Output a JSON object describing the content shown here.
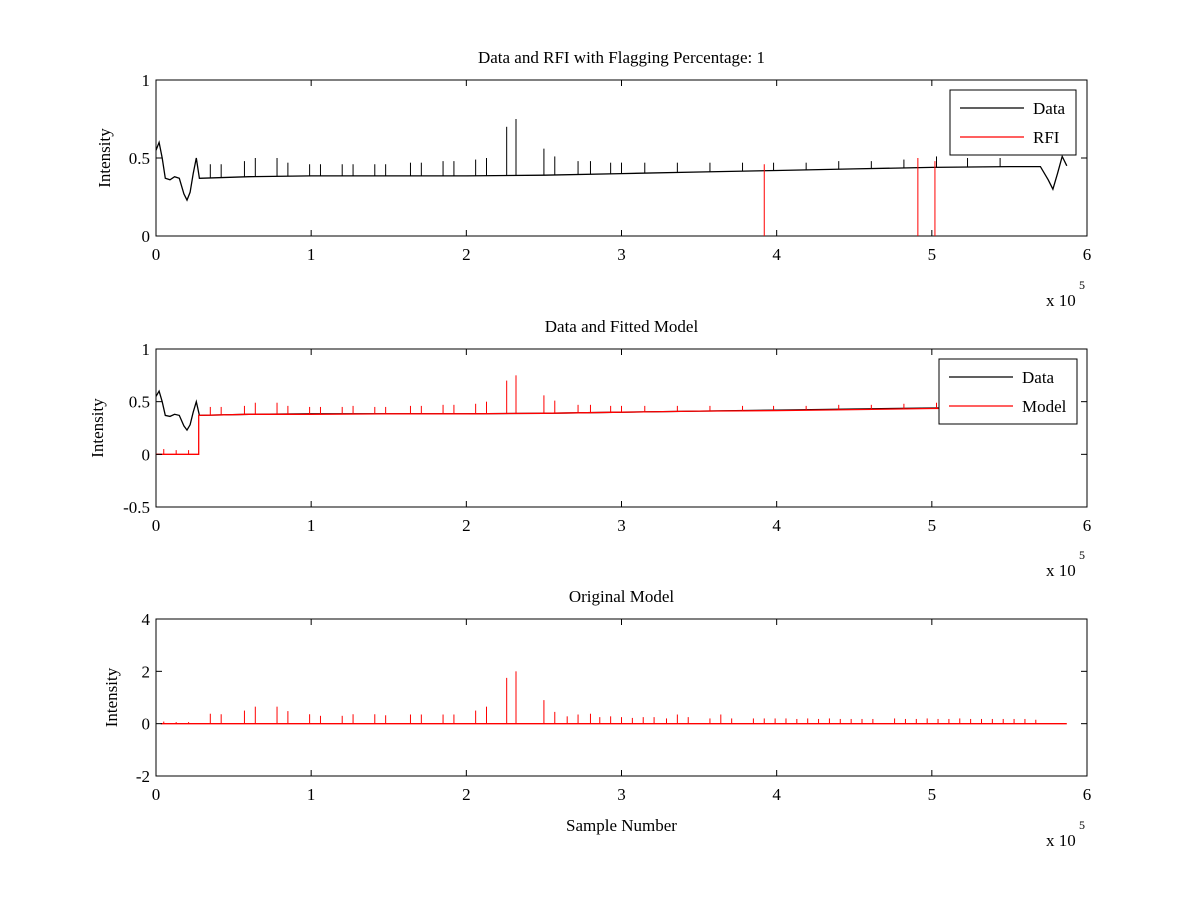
{
  "chart_data": [
    {
      "type": "line",
      "title": "Data and RFI with Flagging Percentage: 1",
      "xlabel": "",
      "ylabel": "Intensity",
      "xlim": [
        0,
        600000
      ],
      "ylim": [
        0,
        1
      ],
      "x_ticks": [
        0,
        100000,
        200000,
        300000,
        400000,
        500000,
        600000
      ],
      "x_tick_labels": [
        "0",
        "1",
        "2",
        "3",
        "4",
        "5",
        "6"
      ],
      "y_ticks": [
        0,
        0.5,
        1
      ],
      "y_tick_labels": [
        "0",
        "0.5",
        "1"
      ],
      "x_multiplier": {
        "text": "x 10",
        "exponent": "5"
      },
      "grid": false,
      "legend": "top-right",
      "series": [
        {
          "name": "Data",
          "color": "#000000",
          "values": [
            [
              0,
              0.55
            ],
            [
              2000,
              0.6
            ],
            [
              4000,
              0.5
            ],
            [
              6000,
              0.37
            ],
            [
              9000,
              0.36
            ],
            [
              12000,
              0.38
            ],
            [
              15000,
              0.37
            ],
            [
              18000,
              0.27
            ],
            [
              20000,
              0.23
            ],
            [
              22000,
              0.28
            ],
            [
              24000,
              0.4
            ],
            [
              26000,
              0.5
            ],
            [
              28000,
              0.37
            ],
            [
              60000,
              0.38
            ],
            [
              100000,
              0.385
            ],
            [
              150000,
              0.385
            ],
            [
              200000,
              0.385
            ],
            [
              250000,
              0.39
            ],
            [
              300000,
              0.4
            ],
            [
              350000,
              0.41
            ],
            [
              400000,
              0.42
            ],
            [
              450000,
              0.43
            ],
            [
              500000,
              0.44
            ],
            [
              550000,
              0.445
            ],
            [
              570000,
              0.445
            ],
            [
              575000,
              0.36
            ],
            [
              578000,
              0.3
            ],
            [
              581000,
              0.4
            ],
            [
              584000,
              0.51
            ],
            [
              587000,
              0.45
            ]
          ],
          "spikes": [
            [
              35000,
              0.46
            ],
            [
              42000,
              0.46
            ],
            [
              57000,
              0.48
            ],
            [
              64000,
              0.5
            ],
            [
              78000,
              0.5
            ],
            [
              85000,
              0.47
            ],
            [
              99000,
              0.46
            ],
            [
              106000,
              0.46
            ],
            [
              120000,
              0.46
            ],
            [
              127000,
              0.46
            ],
            [
              141000,
              0.46
            ],
            [
              148000,
              0.46
            ],
            [
              164000,
              0.47
            ],
            [
              171000,
              0.47
            ],
            [
              185000,
              0.48
            ],
            [
              192000,
              0.48
            ],
            [
              206000,
              0.49
            ],
            [
              213000,
              0.5
            ],
            [
              226000,
              0.7
            ],
            [
              232000,
              0.75
            ],
            [
              250000,
              0.56
            ],
            [
              257000,
              0.51
            ],
            [
              272000,
              0.48
            ],
            [
              280000,
              0.48
            ],
            [
              293000,
              0.47
            ],
            [
              300000,
              0.47
            ],
            [
              315000,
              0.47
            ],
            [
              336000,
              0.47
            ],
            [
              357000,
              0.47
            ],
            [
              378000,
              0.47
            ],
            [
              398000,
              0.47
            ],
            [
              419000,
              0.47
            ],
            [
              440000,
              0.48
            ],
            [
              461000,
              0.48
            ],
            [
              482000,
              0.49
            ],
            [
              503000,
              0.51
            ],
            [
              523000,
              0.5
            ],
            [
              544000,
              0.5
            ]
          ]
        },
        {
          "name": "RFI",
          "color": "#ff0000",
          "spikes": [
            [
              392000,
              0.46
            ],
            [
              491000,
              0.5
            ],
            [
              502000,
              0.48
            ]
          ]
        }
      ]
    },
    {
      "type": "line",
      "title": "Data and Fitted Model",
      "xlabel": "",
      "ylabel": "Intensity",
      "xlim": [
        0,
        600000
      ],
      "ylim": [
        -0.5,
        1
      ],
      "x_ticks": [
        0,
        100000,
        200000,
        300000,
        400000,
        500000,
        600000
      ],
      "x_tick_labels": [
        "0",
        "1",
        "2",
        "3",
        "4",
        "5",
        "6"
      ],
      "y_ticks": [
        -0.5,
        0,
        0.5,
        1
      ],
      "y_tick_labels": [
        "-0.5",
        "0",
        "0.5",
        "1"
      ],
      "x_multiplier": {
        "text": "x 10",
        "exponent": "5"
      },
      "grid": false,
      "legend": "top-right",
      "series": [
        {
          "name": "Data",
          "color": "#000000",
          "values": [
            [
              0,
              0.55
            ],
            [
              2000,
              0.6
            ],
            [
              4000,
              0.5
            ],
            [
              6000,
              0.37
            ],
            [
              9000,
              0.36
            ],
            [
              12000,
              0.38
            ],
            [
              15000,
              0.37
            ],
            [
              18000,
              0.27
            ],
            [
              20000,
              0.23
            ],
            [
              22000,
              0.28
            ],
            [
              24000,
              0.4
            ],
            [
              26000,
              0.5
            ],
            [
              28000,
              0.37
            ],
            [
              60000,
              0.38
            ],
            [
              100000,
              0.385
            ],
            [
              150000,
              0.385
            ],
            [
              200000,
              0.385
            ],
            [
              250000,
              0.39
            ],
            [
              300000,
              0.4
            ],
            [
              350000,
              0.41
            ],
            [
              400000,
              0.42
            ],
            [
              450000,
              0.43
            ],
            [
              500000,
              0.44
            ],
            [
              550000,
              0.445
            ],
            [
              570000,
              0.445
            ],
            [
              575000,
              0.36
            ],
            [
              578000,
              0.3
            ],
            [
              581000,
              0.4
            ],
            [
              584000,
              0.51
            ],
            [
              587000,
              0.45
            ]
          ]
        },
        {
          "name": "Model",
          "color": "#ff0000",
          "values": [
            [
              0,
              0.0
            ],
            [
              27500,
              0.0
            ],
            [
              27500,
              0.37
            ],
            [
              60000,
              0.38
            ],
            [
              100000,
              0.38
            ],
            [
              150000,
              0.385
            ],
            [
              200000,
              0.385
            ],
            [
              250000,
              0.39
            ],
            [
              300000,
              0.4
            ],
            [
              350000,
              0.41
            ],
            [
              400000,
              0.415
            ],
            [
              450000,
              0.425
            ],
            [
              500000,
              0.435
            ],
            [
              550000,
              0.44
            ],
            [
              587000,
              0.445
            ]
          ],
          "spikes": [
            [
              5000,
              0.05
            ],
            [
              13000,
              0.04
            ],
            [
              21000,
              0.04
            ],
            [
              35000,
              0.45
            ],
            [
              42000,
              0.45
            ],
            [
              57000,
              0.46
            ],
            [
              64000,
              0.49
            ],
            [
              78000,
              0.49
            ],
            [
              85000,
              0.46
            ],
            [
              99000,
              0.45
            ],
            [
              106000,
              0.45
            ],
            [
              120000,
              0.45
            ],
            [
              127000,
              0.46
            ],
            [
              141000,
              0.45
            ],
            [
              148000,
              0.45
            ],
            [
              164000,
              0.46
            ],
            [
              171000,
              0.46
            ],
            [
              185000,
              0.47
            ],
            [
              192000,
              0.47
            ],
            [
              206000,
              0.48
            ],
            [
              213000,
              0.5
            ],
            [
              226000,
              0.7
            ],
            [
              232000,
              0.75
            ],
            [
              250000,
              0.56
            ],
            [
              257000,
              0.51
            ],
            [
              272000,
              0.47
            ],
            [
              280000,
              0.47
            ],
            [
              293000,
              0.46
            ],
            [
              300000,
              0.46
            ],
            [
              315000,
              0.46
            ],
            [
              336000,
              0.46
            ],
            [
              357000,
              0.46
            ],
            [
              378000,
              0.46
            ],
            [
              398000,
              0.46
            ],
            [
              419000,
              0.46
            ],
            [
              440000,
              0.47
            ],
            [
              461000,
              0.47
            ],
            [
              482000,
              0.48
            ],
            [
              503000,
              0.49
            ]
          ]
        }
      ]
    },
    {
      "type": "line",
      "title": "Original Model",
      "xlabel": "Sample Number",
      "ylabel": "Intensity",
      "xlim": [
        0,
        600000
      ],
      "ylim": [
        -2,
        4
      ],
      "x_ticks": [
        0,
        100000,
        200000,
        300000,
        400000,
        500000,
        600000
      ],
      "x_tick_labels": [
        "0",
        "1",
        "2",
        "3",
        "4",
        "5",
        "6"
      ],
      "y_ticks": [
        -2,
        0,
        2,
        4
      ],
      "y_tick_labels": [
        "-2",
        "0",
        "2",
        "4"
      ],
      "x_multiplier": {
        "text": "x 10",
        "exponent": "5"
      },
      "grid": false,
      "legend": "none",
      "series": [
        {
          "name": "",
          "color": "#ff0000",
          "values": [
            [
              3000,
              0.0
            ],
            [
              587000,
              0.0
            ]
          ],
          "spikes": [
            [
              5000,
              0.08
            ],
            [
              13000,
              0.06
            ],
            [
              21000,
              0.06
            ],
            [
              35000,
              0.38
            ],
            [
              42000,
              0.36
            ],
            [
              57000,
              0.5
            ],
            [
              64000,
              0.65
            ],
            [
              78000,
              0.65
            ],
            [
              85000,
              0.48
            ],
            [
              99000,
              0.36
            ],
            [
              106000,
              0.3
            ],
            [
              120000,
              0.3
            ],
            [
              127000,
              0.36
            ],
            [
              141000,
              0.36
            ],
            [
              148000,
              0.32
            ],
            [
              164000,
              0.35
            ],
            [
              171000,
              0.35
            ],
            [
              185000,
              0.35
            ],
            [
              192000,
              0.35
            ],
            [
              206000,
              0.5
            ],
            [
              213000,
              0.65
            ],
            [
              226000,
              1.75
            ],
            [
              232000,
              2.0
            ],
            [
              250000,
              0.9
            ],
            [
              257000,
              0.45
            ],
            [
              265000,
              0.28
            ],
            [
              272000,
              0.35
            ],
            [
              280000,
              0.38
            ],
            [
              286000,
              0.25
            ],
            [
              293000,
              0.28
            ],
            [
              300000,
              0.25
            ],
            [
              307000,
              0.22
            ],
            [
              314000,
              0.25
            ],
            [
              321000,
              0.25
            ],
            [
              329000,
              0.2
            ],
            [
              336000,
              0.35
            ],
            [
              343000,
              0.25
            ],
            [
              357000,
              0.2
            ],
            [
              364000,
              0.35
            ],
            [
              371000,
              0.2
            ],
            [
              385000,
              0.2
            ],
            [
              392000,
              0.2
            ],
            [
              399000,
              0.2
            ],
            [
              406000,
              0.2
            ],
            [
              413000,
              0.18
            ],
            [
              420000,
              0.2
            ],
            [
              427000,
              0.18
            ],
            [
              434000,
              0.2
            ],
            [
              441000,
              0.18
            ],
            [
              448000,
              0.18
            ],
            [
              455000,
              0.18
            ],
            [
              462000,
              0.18
            ],
            [
              476000,
              0.2
            ],
            [
              483000,
              0.18
            ],
            [
              490000,
              0.18
            ],
            [
              497000,
              0.2
            ],
            [
              504000,
              0.18
            ],
            [
              511000,
              0.18
            ],
            [
              518000,
              0.2
            ],
            [
              525000,
              0.18
            ],
            [
              532000,
              0.18
            ],
            [
              539000,
              0.18
            ],
            [
              546000,
              0.18
            ],
            [
              553000,
              0.18
            ],
            [
              560000,
              0.18
            ],
            [
              567000,
              0.15
            ]
          ]
        }
      ]
    }
  ]
}
